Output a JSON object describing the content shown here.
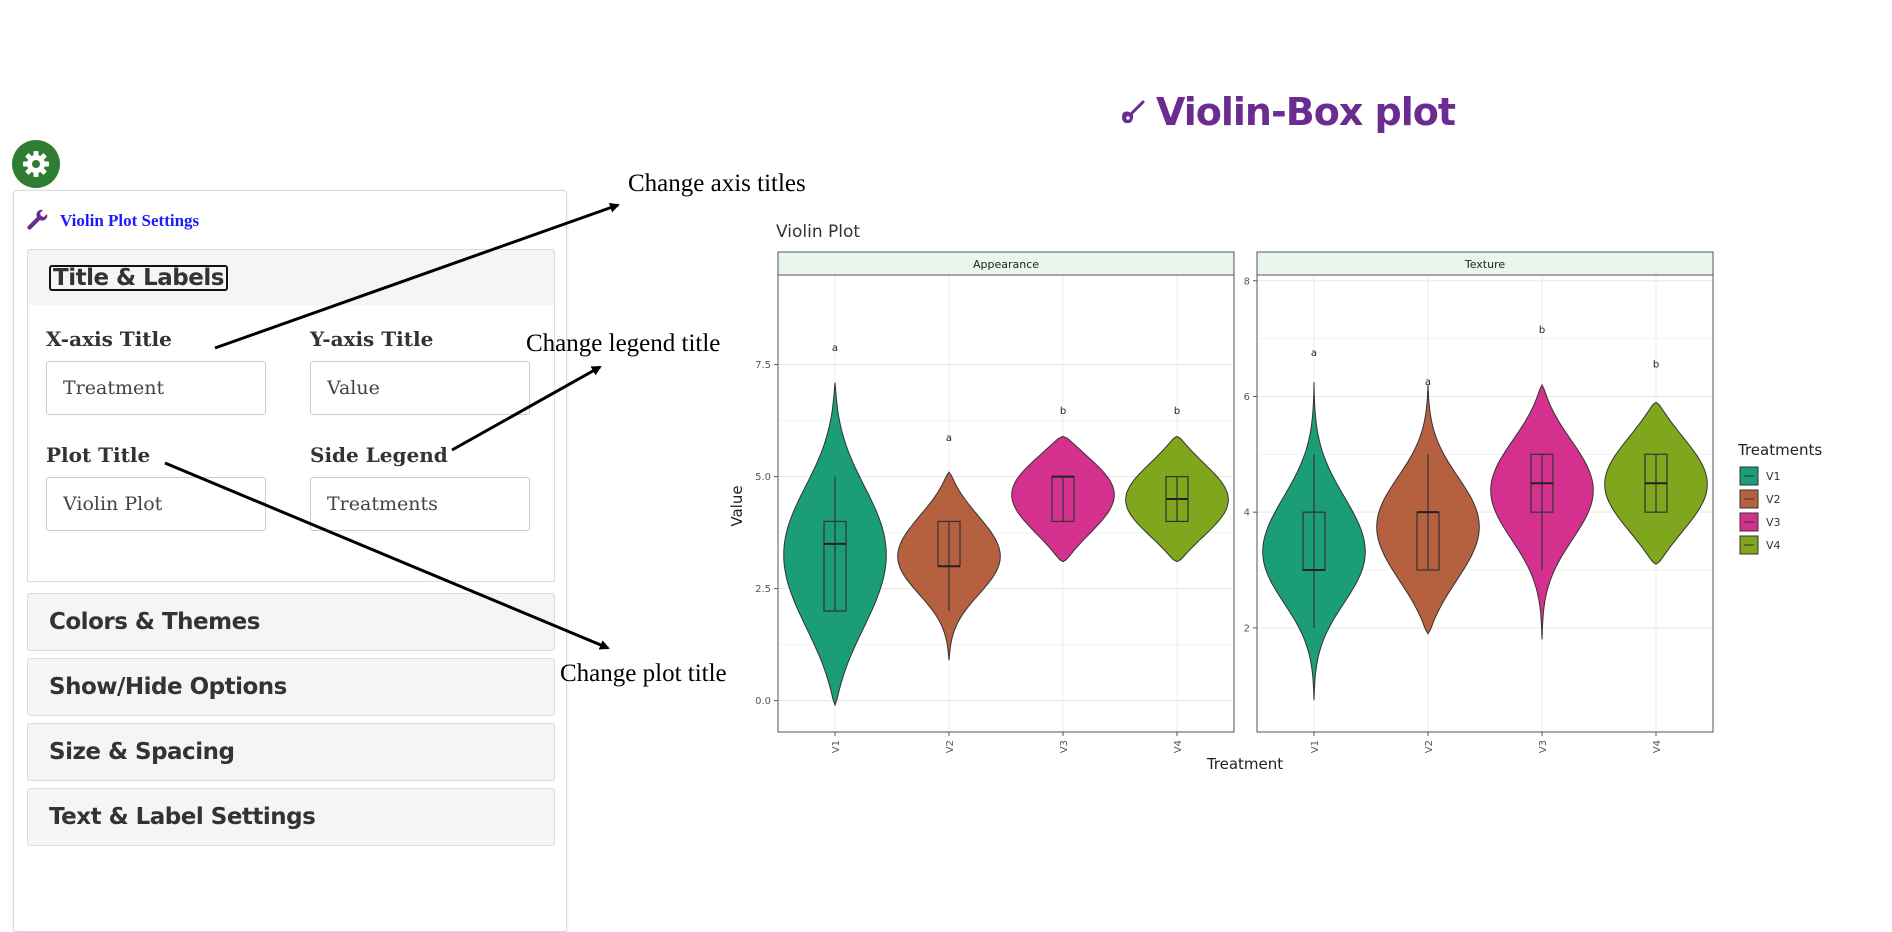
{
  "page_title": "Violin-Box plot",
  "panel": {
    "title": "Violin Plot Settings",
    "sections": [
      "Title & Labels",
      "Colors & Themes",
      "Show/Hide Options",
      "Size & Spacing",
      "Text & Label Settings"
    ],
    "fields": {
      "x_label": "X-axis Title",
      "x_value": "Treatment",
      "y_label": "Y-axis Title",
      "y_value": "Value",
      "plot_label": "Plot Title",
      "plot_value": "Violin Plot",
      "legend_label": "Side Legend",
      "legend_value": "Treatments"
    }
  },
  "annotations": {
    "axis": "Change axis titles",
    "legend": "Change legend title",
    "plot": "Change plot title"
  },
  "icons": {
    "settings": "gear-icon",
    "panel": "wrench-icon",
    "title": "guitar-icon"
  },
  "colors": {
    "accent": "#6a2c91",
    "gear": "#2e7d32",
    "link": "#1a1aff"
  },
  "chart_data": {
    "type": "violin",
    "title": "Violin Plot",
    "xlabel": "Treatment",
    "ylabel": "Value",
    "legend_title": "Treatments",
    "legend_position": "right",
    "categories": [
      "V1",
      "V2",
      "V3",
      "V4"
    ],
    "colors": [
      "#1b9e77",
      "#b5613f",
      "#d4318f",
      "#7fa61c"
    ],
    "panels": [
      {
        "name": "Appearance",
        "ylim": [
          -0.7,
          9.5
        ],
        "yticks": [
          0,
          2.5,
          5,
          7.5
        ],
        "ytick_labels": [
          "0.0",
          "2.5",
          "5.0",
          "7.5"
        ],
        "violins": [
          {
            "category": "V1",
            "min": -0.1,
            "max": 7.1,
            "q1": 2,
            "median": 3.5,
            "q3": 4,
            "whisker_low": 2,
            "whisker_high": 5,
            "letter": "a"
          },
          {
            "category": "V2",
            "min": 0.9,
            "max": 5.1,
            "q1": 3,
            "median": 3,
            "q3": 4,
            "whisker_low": 2,
            "whisker_high": 4,
            "letter": "a"
          },
          {
            "category": "V3",
            "min": 3.1,
            "max": 5.9,
            "q1": 4,
            "median": 5,
            "q3": 5,
            "whisker_low": 4,
            "whisker_high": 5,
            "letter": "b"
          },
          {
            "category": "V4",
            "min": 3.1,
            "max": 5.9,
            "q1": 4,
            "median": 4.5,
            "q3": 5,
            "whisker_low": 4,
            "whisker_high": 5,
            "letter": "b"
          }
        ],
        "letter_y": [
          7.8,
          5.8,
          6.4,
          6.4
        ]
      },
      {
        "name": "Texture",
        "ylim": [
          0.2,
          8.1
        ],
        "yticks": [
          2,
          4,
          6,
          8
        ],
        "ytick_labels": [
          "2",
          "4",
          "6",
          "8"
        ],
        "violins": [
          {
            "category": "V1",
            "min": 0.75,
            "max": 6.25,
            "q1": 3,
            "median": 3,
            "q3": 4,
            "whisker_low": 2,
            "whisker_high": 5,
            "letter": "a"
          },
          {
            "category": "V2",
            "min": 1.9,
            "max": 6.2,
            "q1": 3,
            "median": 4,
            "q3": 4,
            "whisker_low": 3,
            "whisker_high": 5,
            "letter": "a"
          },
          {
            "category": "V3",
            "min": 1.8,
            "max": 6.2,
            "q1": 4,
            "median": 4.5,
            "q3": 5,
            "whisker_low": 3,
            "whisker_high": 5,
            "letter": "b"
          },
          {
            "category": "V4",
            "min": 3.1,
            "max": 5.9,
            "q1": 4,
            "median": 4.5,
            "q3": 5,
            "whisker_low": 4,
            "whisker_high": 5,
            "letter": "b"
          }
        ],
        "letter_y": [
          6.7,
          6.2,
          7.1,
          6.5
        ]
      }
    ]
  }
}
